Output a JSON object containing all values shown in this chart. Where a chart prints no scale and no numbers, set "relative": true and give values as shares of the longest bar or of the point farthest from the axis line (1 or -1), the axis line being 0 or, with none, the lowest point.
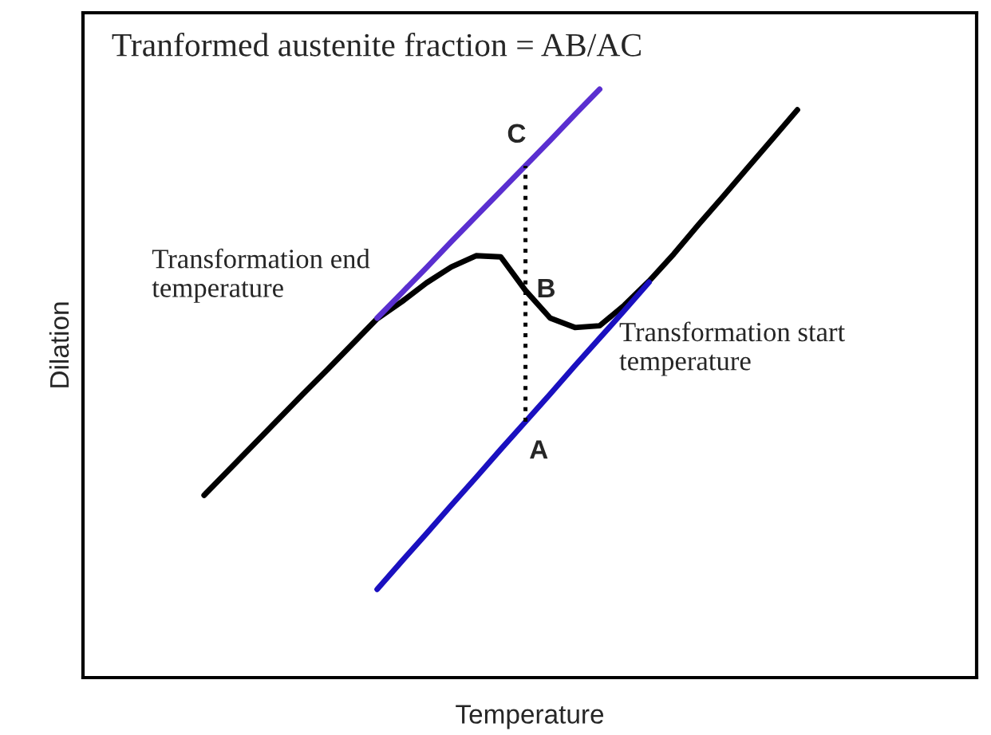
{
  "chart_data": {
    "type": "line",
    "relative": true,
    "xlabel": "Temperature",
    "ylabel": "Dilation",
    "tick_labels": false,
    "legend": false,
    "marker": "none",
    "categories": [
      null,
      null,
      null,
      null,
      null,
      null,
      null,
      null,
      null,
      null,
      null,
      null,
      null,
      null,
      null,
      null,
      null,
      null,
      null,
      null,
      null,
      null,
      null,
      null,
      null
    ],
    "series": [
      {
        "color": "#000000",
        "values": [
          0.31,
          0.353,
          0.396,
          0.439,
          0.482,
          0.524,
          0.567,
          0.61,
          0.639,
          0.671,
          0.698,
          0.717,
          0.715,
          0.658,
          0.611,
          0.595,
          0.598,
          0.633,
          0.674,
          0.72,
          0.77,
          0.818,
          0.867,
          0.916,
          0.965
        ]
      },
      {
        "color": "#1a10c0",
        "values": [
          null,
          null,
          null,
          null,
          null,
          null,
          null,
          0.15,
          0.198,
          0.245,
          0.293,
          0.34,
          0.388,
          0.435,
          0.482,
          0.53,
          0.577,
          0.624,
          0.672,
          null,
          null,
          null,
          null,
          null,
          null
        ]
      },
      {
        "color": "#5a2fd0",
        "values": [
          null,
          null,
          null,
          null,
          null,
          null,
          null,
          0.611,
          0.654,
          0.697,
          0.741,
          0.784,
          0.827,
          0.87,
          0.913,
          0.957,
          1.0,
          null,
          null,
          null,
          null,
          null,
          null,
          null,
          null
        ]
      }
    ],
    "annotations": [
      "Tranformed austenite fraction = AB/AC",
      "Transformation end\ntemperature",
      "Transformation start\ntemperature",
      "C",
      "B",
      "A"
    ]
  }
}
